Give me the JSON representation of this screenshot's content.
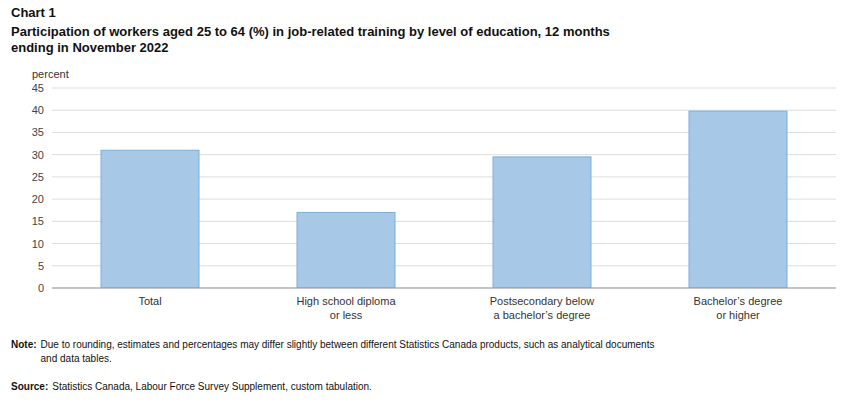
{
  "chart_data": {
    "type": "bar",
    "chart_label": "Chart 1",
    "title": "Participation of workers aged 25 to 64 (%) in job-related training by level of education, 12 months\nending in November 2022",
    "ylabel": "percent",
    "categories": [
      "Total",
      "High school diploma\nor less",
      "Postsecondary below\na bachelor’s degree",
      "Bachelor’s degree\nor higher"
    ],
    "values": [
      31.0,
      17.0,
      29.5,
      39.8
    ],
    "color": "#a8c8e8",
    "ylim": [
      0,
      45
    ],
    "yticks": [
      0,
      5,
      10,
      15,
      20,
      25,
      30,
      35,
      40,
      45
    ],
    "grid": true,
    "note_label": "Note:",
    "note": "Due to rounding, estimates and percentages may differ slightly between different Statistics Canada products, such as analytical documents\nand data tables.",
    "source_label": "Source:",
    "source": "Statistics Canada, Labour Force Survey Supplement, custom tabulation."
  }
}
